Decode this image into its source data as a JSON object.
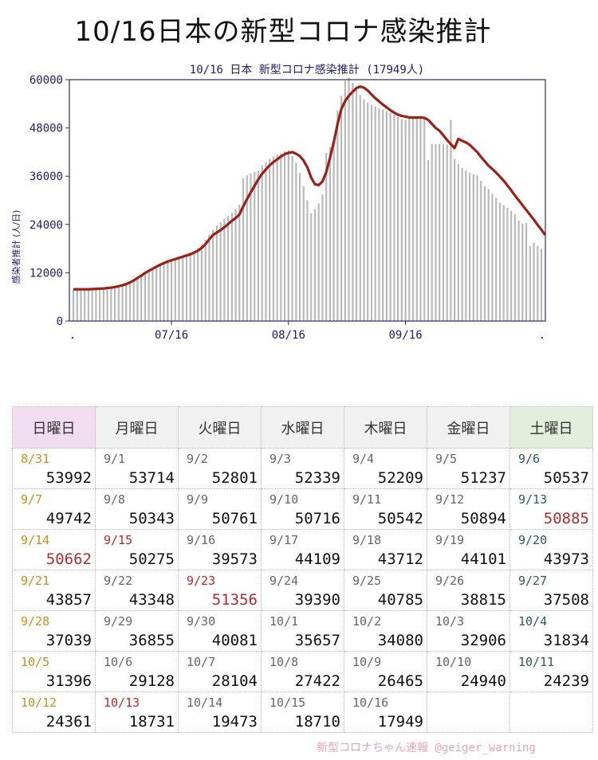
{
  "page": {
    "title": "10/16日本の新型コロナ感染推計"
  },
  "chart_data": {
    "type": "bar",
    "title": "10/16 日本 新型コロナ感染推計 (17949人)",
    "ylabel": "感染者推計 (人/日)",
    "xlabel": "",
    "ylim": [
      0,
      60000
    ],
    "yticks": [
      0,
      12000,
      24000,
      36000,
      48000,
      60000
    ],
    "xticks": [
      ".",
      "07/16",
      "08/16",
      "09/16",
      "."
    ],
    "grid": false,
    "colors": {
      "bars": "#b9b9b9",
      "line": "#9b2018",
      "frame": "#2a2a6e",
      "ticks": "#1d1d6a"
    },
    "series": [
      {
        "name": "",
        "kind": "bar",
        "start": "2022-06-20",
        "values": [
          7700,
          7750,
          7800,
          7800,
          7850,
          7850,
          7900,
          7950,
          8000,
          8050,
          8150,
          8300,
          8500,
          8800,
          9100,
          9500,
          10000,
          10600,
          11200,
          11900,
          12500,
          13100,
          13700,
          14200,
          14700,
          15100,
          15400,
          15700,
          16000,
          16300,
          16600,
          17000,
          17400,
          18100,
          19000,
          20200,
          21500,
          22700,
          23700,
          24600,
          25400,
          26100,
          26900,
          27800,
          28900,
          35500,
          36200,
          36700,
          37100,
          37400,
          38700,
          39500,
          40300,
          40900,
          41300,
          41700,
          42200,
          42500,
          41000,
          39300,
          36800,
          33500,
          30000,
          26800,
          27800,
          29200,
          31500,
          41800,
          43200,
          44800,
          52400,
          56000,
          59800,
          60500,
          59200,
          57600,
          56200,
          55100,
          54300,
          53700,
          53300,
          52900,
          52600,
          52200,
          51800,
          51300,
          50700,
          50200,
          49900,
          50300,
          50500,
          50900,
          51000,
          50800,
          40000,
          44000,
          44000,
          44000,
          44000,
          43900,
          49900,
          40300,
          39000,
          38000,
          37500,
          36900,
          36500,
          36200,
          34800,
          33500,
          32800,
          31600,
          30600,
          29400,
          28800,
          28100,
          27400,
          26500,
          25000,
          24200,
          24400,
          18700,
          19500,
          18700,
          18000
        ]
      },
      {
        "name": "",
        "kind": "line",
        "start": "2022-06-20",
        "values": [
          7900,
          7900,
          7900,
          7900,
          7900,
          7950,
          8000,
          8050,
          8100,
          8200,
          8300,
          8450,
          8650,
          8900,
          9200,
          9600,
          10100,
          10700,
          11300,
          11950,
          12500,
          13000,
          13500,
          14000,
          14400,
          14800,
          15100,
          15400,
          15700,
          16000,
          16300,
          16600,
          17000,
          17500,
          18200,
          19100,
          20300,
          21400,
          22000,
          22600,
          23300,
          24100,
          24900,
          25600,
          26500,
          28500,
          30300,
          32000,
          33600,
          35200,
          36600,
          37700,
          38700,
          39500,
          40200,
          40900,
          41500,
          41800,
          42000,
          41600,
          41000,
          39900,
          38200,
          35700,
          34000,
          33800,
          34700,
          37000,
          40600,
          44500,
          49000,
          52700,
          54700,
          56000,
          57000,
          57900,
          58300,
          58000,
          57300,
          56300,
          55400,
          54600,
          53800,
          53100,
          52400,
          51800,
          51300,
          51000,
          50800,
          50600,
          50600,
          50600,
          50600,
          50500,
          50000,
          49000,
          48000,
          47300,
          46200,
          45000,
          44000,
          43000,
          45300,
          44800,
          44400,
          43800,
          42900,
          42000,
          40800,
          39700,
          38600,
          37800,
          36900,
          35900,
          34900,
          33700,
          32500,
          31200,
          30000,
          28800,
          27600,
          26400,
          25200,
          23900,
          22700,
          21400
        ]
      }
    ]
  },
  "calendar": {
    "headers": [
      "日曜日",
      "月曜日",
      "火曜日",
      "水曜日",
      "木曜日",
      "金曜日",
      "土曜日"
    ],
    "rows": [
      [
        {
          "d": "8/31",
          "v": "53992",
          "dc": "hol"
        },
        {
          "d": "9/1",
          "v": "53714"
        },
        {
          "d": "9/2",
          "v": "52801"
        },
        {
          "d": "9/3",
          "v": "52339"
        },
        {
          "d": "9/4",
          "v": "52209"
        },
        {
          "d": "9/5",
          "v": "51237"
        },
        {
          "d": "9/6",
          "v": "50537",
          "dc": "sat"
        }
      ],
      [
        {
          "d": "9/7",
          "v": "49742",
          "dc": "hol"
        },
        {
          "d": "9/8",
          "v": "50343"
        },
        {
          "d": "9/9",
          "v": "50761"
        },
        {
          "d": "9/10",
          "v": "50716"
        },
        {
          "d": "9/11",
          "v": "50542"
        },
        {
          "d": "9/12",
          "v": "50894"
        },
        {
          "d": "9/13",
          "v": "50885",
          "dc": "sat",
          "vc": "red"
        }
      ],
      [
        {
          "d": "9/14",
          "v": "50662",
          "dc": "hol",
          "vc": "red"
        },
        {
          "d": "9/15",
          "v": "50275",
          "dc": "red"
        },
        {
          "d": "9/16",
          "v": "39573"
        },
        {
          "d": "9/17",
          "v": "44109"
        },
        {
          "d": "9/18",
          "v": "43712"
        },
        {
          "d": "9/19",
          "v": "44101"
        },
        {
          "d": "9/20",
          "v": "43973",
          "dc": "sat"
        }
      ],
      [
        {
          "d": "9/21",
          "v": "43857",
          "dc": "hol"
        },
        {
          "d": "9/22",
          "v": "43348"
        },
        {
          "d": "9/23",
          "v": "51356",
          "dc": "red",
          "vc": "red"
        },
        {
          "d": "9/24",
          "v": "39390"
        },
        {
          "d": "9/25",
          "v": "40785"
        },
        {
          "d": "9/26",
          "v": "38815"
        },
        {
          "d": "9/27",
          "v": "37508",
          "dc": "sat"
        }
      ],
      [
        {
          "d": "9/28",
          "v": "37039",
          "dc": "hol"
        },
        {
          "d": "9/29",
          "v": "36855"
        },
        {
          "d": "9/30",
          "v": "40081"
        },
        {
          "d": "10/1",
          "v": "35657"
        },
        {
          "d": "10/2",
          "v": "34080"
        },
        {
          "d": "10/3",
          "v": "32906"
        },
        {
          "d": "10/4",
          "v": "31834",
          "dc": "sat"
        }
      ],
      [
        {
          "d": "10/5",
          "v": "31396",
          "dc": "hol"
        },
        {
          "d": "10/6",
          "v": "29128"
        },
        {
          "d": "10/7",
          "v": "28104"
        },
        {
          "d": "10/8",
          "v": "27422"
        },
        {
          "d": "10/9",
          "v": "26465"
        },
        {
          "d": "10/10",
          "v": "24940"
        },
        {
          "d": "10/11",
          "v": "24239",
          "dc": "sat"
        }
      ],
      [
        {
          "d": "10/12",
          "v": "24361",
          "dc": "hol"
        },
        {
          "d": "10/13",
          "v": "18731",
          "dc": "red"
        },
        {
          "d": "10/14",
          "v": "19473"
        },
        {
          "d": "10/15",
          "v": "18710"
        },
        {
          "d": "10/16",
          "v": "17949"
        },
        {
          "d": "",
          "v": ""
        },
        {
          "d": "",
          "v": ""
        }
      ]
    ]
  },
  "watermark": "新型コロナちゃん速報  @geiger_warning"
}
